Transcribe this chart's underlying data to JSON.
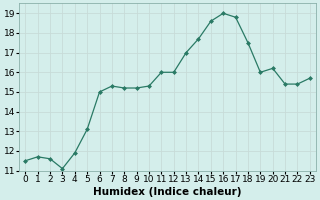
{
  "x": [
    0,
    1,
    2,
    3,
    4,
    5,
    6,
    7,
    8,
    9,
    10,
    11,
    12,
    13,
    14,
    15,
    16,
    17,
    18,
    19,
    20,
    21,
    22,
    23
  ],
  "y": [
    11.5,
    11.7,
    11.6,
    11.1,
    11.9,
    13.1,
    15.0,
    15.3,
    15.2,
    15.2,
    15.3,
    16.0,
    16.0,
    17.0,
    17.7,
    18.6,
    19.0,
    18.8,
    17.5,
    16.0,
    16.2,
    15.4,
    15.4,
    15.7
  ],
  "line_color": "#2a7a65",
  "marker_color": "#2a7a65",
  "bg_color": "#d4eeeb",
  "grid_color": "#c8dbd8",
  "xlabel": "Humidex (Indice chaleur)",
  "xlabel_fontsize": 7.5,
  "ylim": [
    11,
    19.5
  ],
  "xlim": [
    -0.5,
    23.5
  ],
  "yticks": [
    11,
    12,
    13,
    14,
    15,
    16,
    17,
    18,
    19
  ],
  "tick_fontsize": 6.5,
  "xlabel_fontweight": "bold"
}
